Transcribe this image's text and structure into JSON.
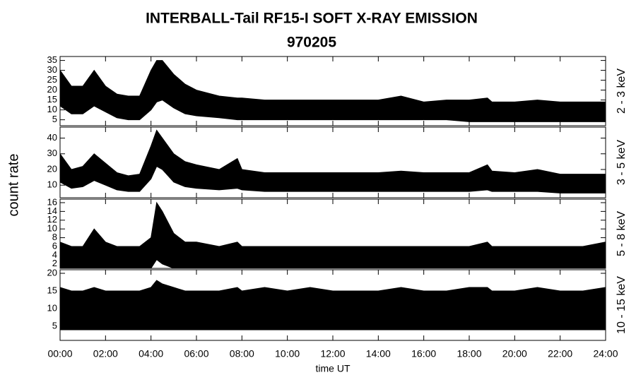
{
  "title": "INTERBALL-Tail RF15-I SOFT X-RAY EMISSION",
  "subtitle": "970205",
  "xlabel": "time UT",
  "ylabel": "count rate",
  "chart_data": [
    {
      "type": "band",
      "label": "2 - 3 keV",
      "color": "#000000",
      "x": [
        0,
        0.5,
        1,
        1.5,
        2,
        2.5,
        3,
        3.5,
        4,
        4.25,
        4.5,
        5,
        5.5,
        6,
        7,
        7.8,
        8,
        9,
        10,
        11,
        12,
        13,
        14,
        15,
        16,
        17,
        18,
        18.8,
        19,
        20,
        21,
        22,
        23,
        24
      ],
      "low": [
        12,
        8,
        8,
        12,
        9,
        6,
        5,
        5,
        10,
        14,
        15,
        11,
        8,
        7,
        6,
        5,
        5,
        5,
        5,
        5,
        5,
        5,
        5,
        5,
        5,
        5,
        4,
        4,
        4,
        4,
        4,
        4,
        4,
        4
      ],
      "high": [
        30,
        22,
        22,
        30,
        22,
        18,
        17,
        17,
        30,
        35,
        35,
        28,
        23,
        20,
        17,
        16,
        16,
        15,
        15,
        15,
        15,
        15,
        15,
        17,
        14,
        15,
        15,
        16,
        14,
        14,
        15,
        14,
        14,
        14
      ],
      "ylim": [
        2,
        37
      ],
      "yticks": [
        5,
        10,
        15,
        20,
        25,
        30,
        35
      ]
    },
    {
      "type": "band",
      "label": "3 - 5 keV",
      "color": "#000000",
      "x": [
        0,
        0.5,
        1,
        1.5,
        2,
        2.5,
        3,
        3.5,
        4,
        4.25,
        4.5,
        5,
        5.5,
        6,
        7,
        7.8,
        8,
        9,
        10,
        11,
        12,
        13,
        14,
        15,
        16,
        17,
        18,
        18.8,
        19,
        20,
        21,
        22,
        23,
        24
      ],
      "low": [
        12,
        8,
        9,
        13,
        10,
        7,
        6,
        6,
        14,
        22,
        20,
        12,
        9,
        8,
        7,
        8,
        7,
        6,
        6,
        6,
        6,
        6,
        6,
        6,
        6,
        6,
        6,
        7,
        6,
        6,
        6,
        5,
        5,
        5
      ],
      "high": [
        30,
        20,
        22,
        30,
        24,
        18,
        16,
        17,
        35,
        45,
        40,
        30,
        25,
        23,
        20,
        27,
        20,
        18,
        18,
        18,
        18,
        18,
        18,
        19,
        18,
        18,
        18,
        23,
        19,
        18,
        20,
        17,
        17,
        17
      ],
      "ylim": [
        2,
        47
      ],
      "yticks": [
        10,
        20,
        30,
        40
      ]
    },
    {
      "type": "band",
      "label": "5 - 8 keV",
      "color": "#000000",
      "x": [
        0,
        0.5,
        1,
        1.5,
        2,
        2.5,
        3,
        3.5,
        4,
        4.25,
        4.5,
        5,
        5.5,
        6,
        7,
        7.8,
        8,
        9,
        10,
        11,
        12,
        13,
        14,
        15,
        16,
        17,
        18,
        18.8,
        19,
        20,
        21,
        22,
        23,
        24
      ],
      "low": [
        1,
        1,
        1,
        1,
        1,
        1,
        1,
        1,
        1,
        3,
        2,
        1,
        1,
        1,
        1,
        1,
        1,
        1,
        1,
        1,
        1,
        1,
        1,
        1,
        1,
        1,
        1,
        1,
        1,
        1,
        1,
        1,
        1,
        1
      ],
      "high": [
        7,
        6,
        6,
        10,
        7,
        6,
        6,
        6,
        8,
        16,
        14,
        9,
        7,
        7,
        6,
        7,
        6,
        6,
        6,
        6,
        6,
        6,
        6,
        6,
        6,
        6,
        6,
        7,
        6,
        6,
        6,
        6,
        6,
        7
      ],
      "ylim": [
        1,
        16.8
      ],
      "yticks": [
        2,
        4,
        6,
        8,
        10,
        12,
        14,
        16
      ]
    },
    {
      "type": "band",
      "label": "10 - 15 keV",
      "color": "#000000",
      "x": [
        0,
        0.5,
        1,
        1.5,
        2,
        2.5,
        3,
        3.5,
        4,
        4.25,
        4.5,
        5,
        5.5,
        6,
        7,
        7.8,
        8,
        9,
        10,
        11,
        12,
        13,
        14,
        15,
        16,
        17,
        18,
        18.8,
        19,
        20,
        21,
        22,
        23,
        24
      ],
      "low": [
        4,
        4,
        4,
        4,
        4,
        4,
        4,
        4,
        4,
        4,
        4,
        4,
        4,
        4,
        4,
        4,
        4,
        4,
        4,
        4,
        4,
        4,
        4,
        4,
        4,
        4,
        4,
        4,
        4,
        4,
        4,
        4,
        4,
        4
      ],
      "high": [
        16,
        15,
        15,
        16,
        15,
        15,
        15,
        15,
        16,
        18,
        17,
        16,
        15,
        15,
        15,
        16,
        15,
        16,
        15,
        16,
        15,
        15,
        15,
        16,
        15,
        15,
        16,
        16,
        15,
        15,
        16,
        15,
        15,
        16
      ],
      "ylim": [
        1,
        21
      ],
      "yticks": [
        5,
        10,
        15,
        20
      ],
      "xlim": [
        0,
        24
      ],
      "xticks": [
        {
          "value": 0,
          "label": "00:00"
        },
        {
          "value": 2,
          "label": "02:00"
        },
        {
          "value": 4,
          "label": "04:00"
        },
        {
          "value": 6,
          "label": "06:00"
        },
        {
          "value": 8,
          "label": "08:00"
        },
        {
          "value": 10,
          "label": "10:00"
        },
        {
          "value": 12,
          "label": "12:00"
        },
        {
          "value": 14,
          "label": "14:00"
        },
        {
          "value": 16,
          "label": "16:00"
        },
        {
          "value": 18,
          "label": "18:00"
        },
        {
          "value": 20,
          "label": "20:00"
        },
        {
          "value": 22,
          "label": "22:00"
        },
        {
          "value": 24,
          "label": "24:00"
        }
      ]
    }
  ]
}
